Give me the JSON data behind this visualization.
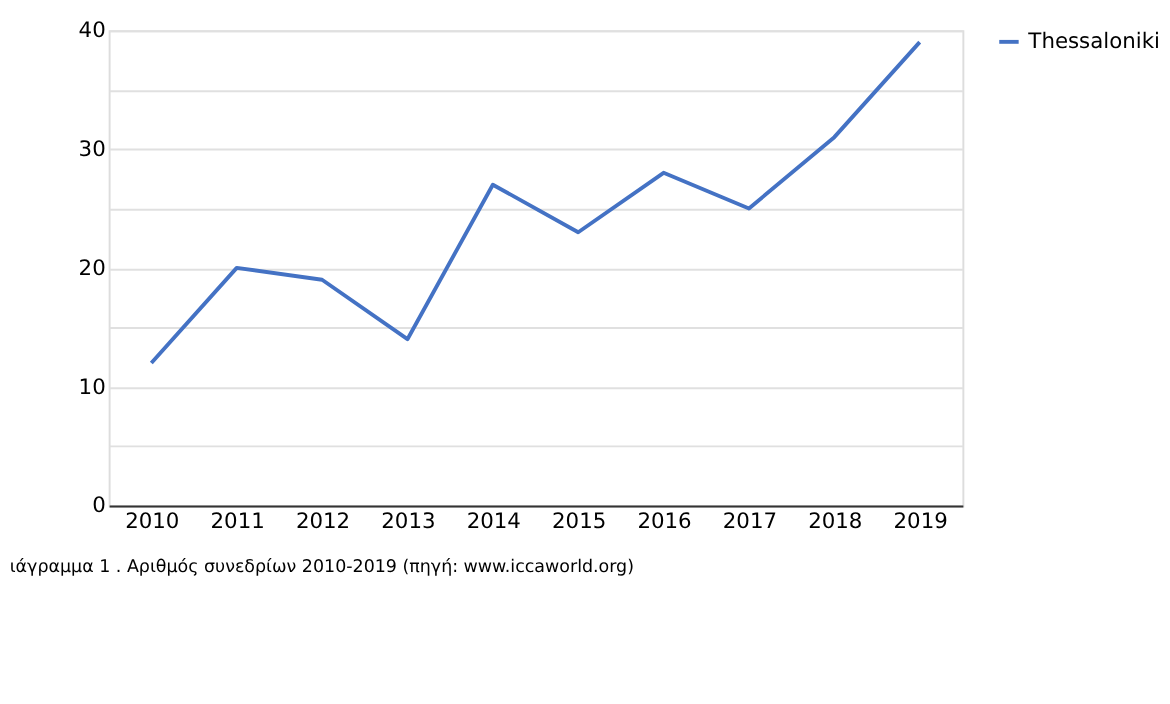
{
  "chart_data": {
    "type": "line",
    "categories": [
      "2010",
      "2011",
      "2012",
      "2013",
      "2014",
      "2015",
      "2016",
      "2017",
      "2018",
      "2019"
    ],
    "series": [
      {
        "name": "Thessaloniki",
        "color": "#4472c4",
        "values": [
          12,
          20,
          19,
          14,
          27,
          23,
          28,
          25,
          31,
          39
        ]
      }
    ],
    "ylim": [
      0,
      40
    ],
    "yticks": [
      0,
      {
        "value": 5,
        "label": null
      },
      10,
      {
        "value": 15,
        "label": null
      },
      20,
      {
        "value": 25,
        "label": null
      },
      30,
      {
        "value": 35,
        "label": null
      },
      40
    ],
    "grid": "y",
    "legend": "top right",
    "marker": "none",
    "line_style": "solid",
    "annotations": [
      "ιάγραμμα 1 . Αριθμός συνεδρίων 2010-2019  (πηγή: www.iccaworld.org)"
    ]
  }
}
